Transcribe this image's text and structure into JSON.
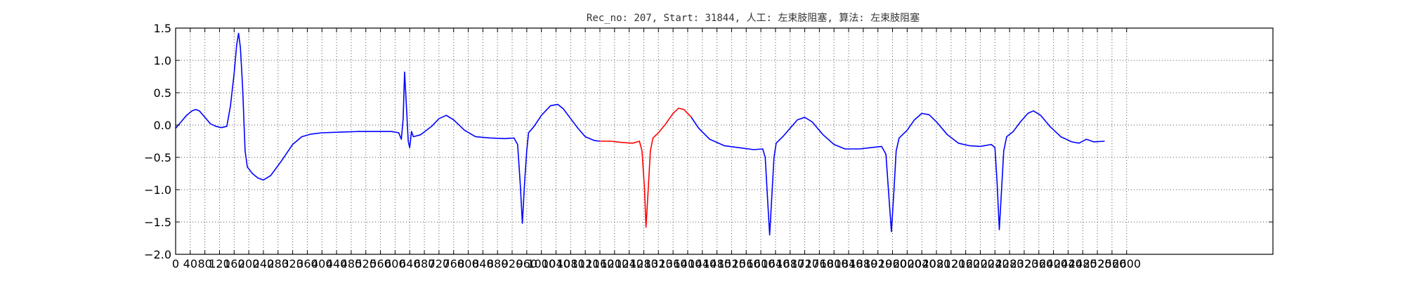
{
  "chart_data": {
    "type": "line",
    "title": "Rec_no: 207, Start: 31844, 人工: 左束肢阻塞, 算法: 左束肢阻塞",
    "xlabel": "",
    "ylabel": "",
    "xlim": [
      0,
      3000
    ],
    "ylim": [
      -2.0,
      1.5
    ],
    "grid": true,
    "grid_style": "dotted",
    "yticks": [
      "1.5",
      "1.0",
      "0.5",
      "0.0",
      "−0.5",
      "−1.0",
      "−1.5",
      "−2.0"
    ],
    "xticks": [
      {
        "v": 0,
        "label": "0"
      },
      {
        "v": 40,
        "label": "40"
      },
      {
        "v": 80,
        "label": "80"
      },
      {
        "v": 120,
        "label": "120"
      },
      {
        "v": 160,
        "label": "160"
      },
      {
        "v": 200,
        "label": "200"
      },
      {
        "v": 240,
        "label": "240"
      },
      {
        "v": 280,
        "label": "280"
      },
      {
        "v": 320,
        "label": "320"
      },
      {
        "v": 360,
        "label": "360"
      },
      {
        "v": 400,
        "label": "400"
      },
      {
        "v": 440,
        "label": "440"
      },
      {
        "v": 480,
        "label": "480"
      },
      {
        "v": 520,
        "label": "520"
      },
      {
        "v": 560,
        "label": "560"
      },
      {
        "v": 600,
        "label": "600"
      },
      {
        "v": 640,
        "label": "640"
      },
      {
        "v": 680,
        "label": "680"
      },
      {
        "v": 720,
        "label": "720"
      },
      {
        "v": 760,
        "label": "760"
      },
      {
        "v": 800,
        "label": "800"
      },
      {
        "v": 840,
        "label": "840"
      },
      {
        "v": 880,
        "label": "880"
      },
      {
        "v": 920,
        "label": "920"
      },
      {
        "v": 960,
        "label": "960"
      },
      {
        "v": 1000,
        "label": "1000"
      },
      {
        "v": 1040,
        "label": "1040"
      },
      {
        "v": 1080,
        "label": "1080"
      },
      {
        "v": 1120,
        "label": "1120"
      },
      {
        "v": 1160,
        "label": "1160"
      },
      {
        "v": 1200,
        "label": "1200"
      },
      {
        "v": 1240,
        "label": "1240"
      },
      {
        "v": 1280,
        "label": "1280"
      },
      {
        "v": 1320,
        "label": "1320"
      },
      {
        "v": 1360,
        "label": "1360"
      },
      {
        "v": 1400,
        "label": "1400"
      },
      {
        "v": 1440,
        "label": "1440"
      },
      {
        "v": 1480,
        "label": "1480"
      },
      {
        "v": 1520,
        "label": "1520"
      },
      {
        "v": 1560,
        "label": "1560"
      },
      {
        "v": 1600,
        "label": "1600"
      },
      {
        "v": 1640,
        "label": "1640"
      },
      {
        "v": 1680,
        "label": "1680"
      },
      {
        "v": 1720,
        "label": "1720"
      },
      {
        "v": 1760,
        "label": "1760"
      },
      {
        "v": 1800,
        "label": "1800"
      },
      {
        "v": 1840,
        "label": "1840"
      },
      {
        "v": 1880,
        "label": "1880"
      },
      {
        "v": 1920,
        "label": "1920"
      },
      {
        "v": 1960,
        "label": "1960"
      },
      {
        "v": 2000,
        "label": "2000"
      },
      {
        "v": 2040,
        "label": "2040"
      },
      {
        "v": 2080,
        "label": "2080"
      },
      {
        "v": 2120,
        "label": "2120"
      },
      {
        "v": 2160,
        "label": "2160"
      },
      {
        "v": 2200,
        "label": "2200"
      },
      {
        "v": 2240,
        "label": "2240"
      },
      {
        "v": 2280,
        "label": "2280"
      },
      {
        "v": 2320,
        "label": "2320"
      },
      {
        "v": 2360,
        "label": "2360"
      },
      {
        "v": 2400,
        "label": "2400"
      },
      {
        "v": 2440,
        "label": "2440"
      },
      {
        "v": 2480,
        "label": "2480"
      },
      {
        "v": 2520,
        "label": "2520"
      },
      {
        "v": 2560,
        "label": "2560"
      },
      {
        "v": 2600,
        "label": "2600"
      }
    ],
    "series": [
      {
        "color": "#0000ff",
        "points": [
          [
            0,
            -0.05
          ],
          [
            15,
            0.05
          ],
          [
            30,
            0.15
          ],
          [
            45,
            0.22
          ],
          [
            55,
            0.24
          ],
          [
            65,
            0.22
          ],
          [
            80,
            0.12
          ],
          [
            95,
            0.02
          ],
          [
            110,
            -0.02
          ],
          [
            125,
            -0.04
          ],
          [
            140,
            -0.02
          ],
          [
            150,
            0.3
          ],
          [
            160,
            0.8
          ],
          [
            167,
            1.25
          ],
          [
            172,
            1.42
          ],
          [
            177,
            1.2
          ],
          [
            183,
            0.6
          ],
          [
            190,
            -0.4
          ],
          [
            196,
            -0.65
          ],
          [
            210,
            -0.75
          ],
          [
            225,
            -0.82
          ],
          [
            240,
            -0.85
          ],
          [
            260,
            -0.78
          ],
          [
            290,
            -0.55
          ],
          [
            320,
            -0.3
          ],
          [
            345,
            -0.18
          ],
          [
            370,
            -0.14
          ],
          [
            400,
            -0.12
          ],
          [
            450,
            -0.11
          ],
          [
            500,
            -0.1
          ],
          [
            550,
            -0.1
          ],
          [
            590,
            -0.1
          ],
          [
            610,
            -0.12
          ],
          [
            617,
            -0.22
          ],
          [
            622,
            0.1
          ],
          [
            626,
            0.82
          ],
          [
            631,
            0.3
          ],
          [
            636,
            -0.25
          ],
          [
            640,
            -0.35
          ],
          [
            645,
            -0.1
          ],
          [
            650,
            -0.18
          ],
          [
            670,
            -0.15
          ],
          [
            700,
            -0.02
          ],
          [
            720,
            0.1
          ],
          [
            740,
            0.15
          ],
          [
            760,
            0.08
          ],
          [
            790,
            -0.08
          ],
          [
            820,
            -0.18
          ],
          [
            860,
            -0.2
          ],
          [
            900,
            -0.21
          ],
          [
            925,
            -0.2
          ],
          [
            935,
            -0.3
          ],
          [
            942,
            -0.9
          ],
          [
            948,
            -1.52
          ],
          [
            954,
            -0.9
          ],
          [
            960,
            -0.4
          ],
          [
            965,
            -0.12
          ],
          [
            980,
            -0.02
          ],
          [
            1000,
            0.15
          ],
          [
            1025,
            0.3
          ],
          [
            1045,
            0.32
          ],
          [
            1060,
            0.25
          ],
          [
            1080,
            0.1
          ],
          [
            1100,
            -0.05
          ],
          [
            1120,
            -0.18
          ],
          [
            1145,
            -0.24
          ],
          [
            1160,
            -0.25
          ]
        ]
      },
      {
        "color": "#ff0000",
        "points": [
          [
            1160,
            -0.25
          ],
          [
            1190,
            -0.25
          ],
          [
            1220,
            -0.27
          ],
          [
            1250,
            -0.28
          ],
          [
            1268,
            -0.25
          ],
          [
            1275,
            -0.4
          ],
          [
            1282,
            -1.0
          ],
          [
            1286,
            -1.58
          ],
          [
            1292,
            -1.0
          ],
          [
            1298,
            -0.4
          ],
          [
            1305,
            -0.2
          ],
          [
            1320,
            -0.12
          ],
          [
            1340,
            0.02
          ],
          [
            1360,
            0.18
          ],
          [
            1375,
            0.26
          ],
          [
            1390,
            0.24
          ],
          [
            1405,
            0.15
          ],
          [
            1410,
            0.12
          ]
        ]
      },
      {
        "color": "#0000ff",
        "points": [
          [
            1410,
            0.12
          ],
          [
            1430,
            -0.05
          ],
          [
            1460,
            -0.22
          ],
          [
            1500,
            -0.32
          ],
          [
            1540,
            -0.35
          ],
          [
            1580,
            -0.38
          ],
          [
            1605,
            -0.37
          ],
          [
            1612,
            -0.5
          ],
          [
            1618,
            -1.1
          ],
          [
            1624,
            -1.7
          ],
          [
            1630,
            -1.1
          ],
          [
            1636,
            -0.5
          ],
          [
            1642,
            -0.28
          ],
          [
            1660,
            -0.18
          ],
          [
            1680,
            -0.05
          ],
          [
            1700,
            0.08
          ],
          [
            1720,
            0.12
          ],
          [
            1740,
            0.05
          ],
          [
            1770,
            -0.15
          ],
          [
            1800,
            -0.3
          ],
          [
            1830,
            -0.37
          ],
          [
            1870,
            -0.37
          ],
          [
            1900,
            -0.35
          ],
          [
            1930,
            -0.33
          ],
          [
            1942,
            -0.45
          ],
          [
            1950,
            -1.1
          ],
          [
            1957,
            -1.65
          ],
          [
            1964,
            -1.0
          ],
          [
            1970,
            -0.4
          ],
          [
            1978,
            -0.2
          ],
          [
            2000,
            -0.08
          ],
          [
            2020,
            0.08
          ],
          [
            2040,
            0.18
          ],
          [
            2060,
            0.16
          ],
          [
            2080,
            0.05
          ],
          [
            2110,
            -0.15
          ],
          [
            2140,
            -0.28
          ],
          [
            2170,
            -0.32
          ],
          [
            2200,
            -0.33
          ],
          [
            2230,
            -0.3
          ],
          [
            2240,
            -0.35
          ],
          [
            2246,
            -0.9
          ],
          [
            2252,
            -1.62
          ],
          [
            2258,
            -1.0
          ],
          [
            2264,
            -0.4
          ],
          [
            2272,
            -0.18
          ],
          [
            2290,
            -0.1
          ],
          [
            2310,
            0.05
          ],
          [
            2330,
            0.18
          ],
          [
            2345,
            0.22
          ],
          [
            2365,
            0.15
          ],
          [
            2390,
            -0.02
          ],
          [
            2420,
            -0.18
          ],
          [
            2450,
            -0.26
          ],
          [
            2470,
            -0.28
          ],
          [
            2490,
            -0.22
          ],
          [
            2510,
            -0.26
          ],
          [
            2540,
            -0.25
          ]
        ]
      }
    ]
  }
}
